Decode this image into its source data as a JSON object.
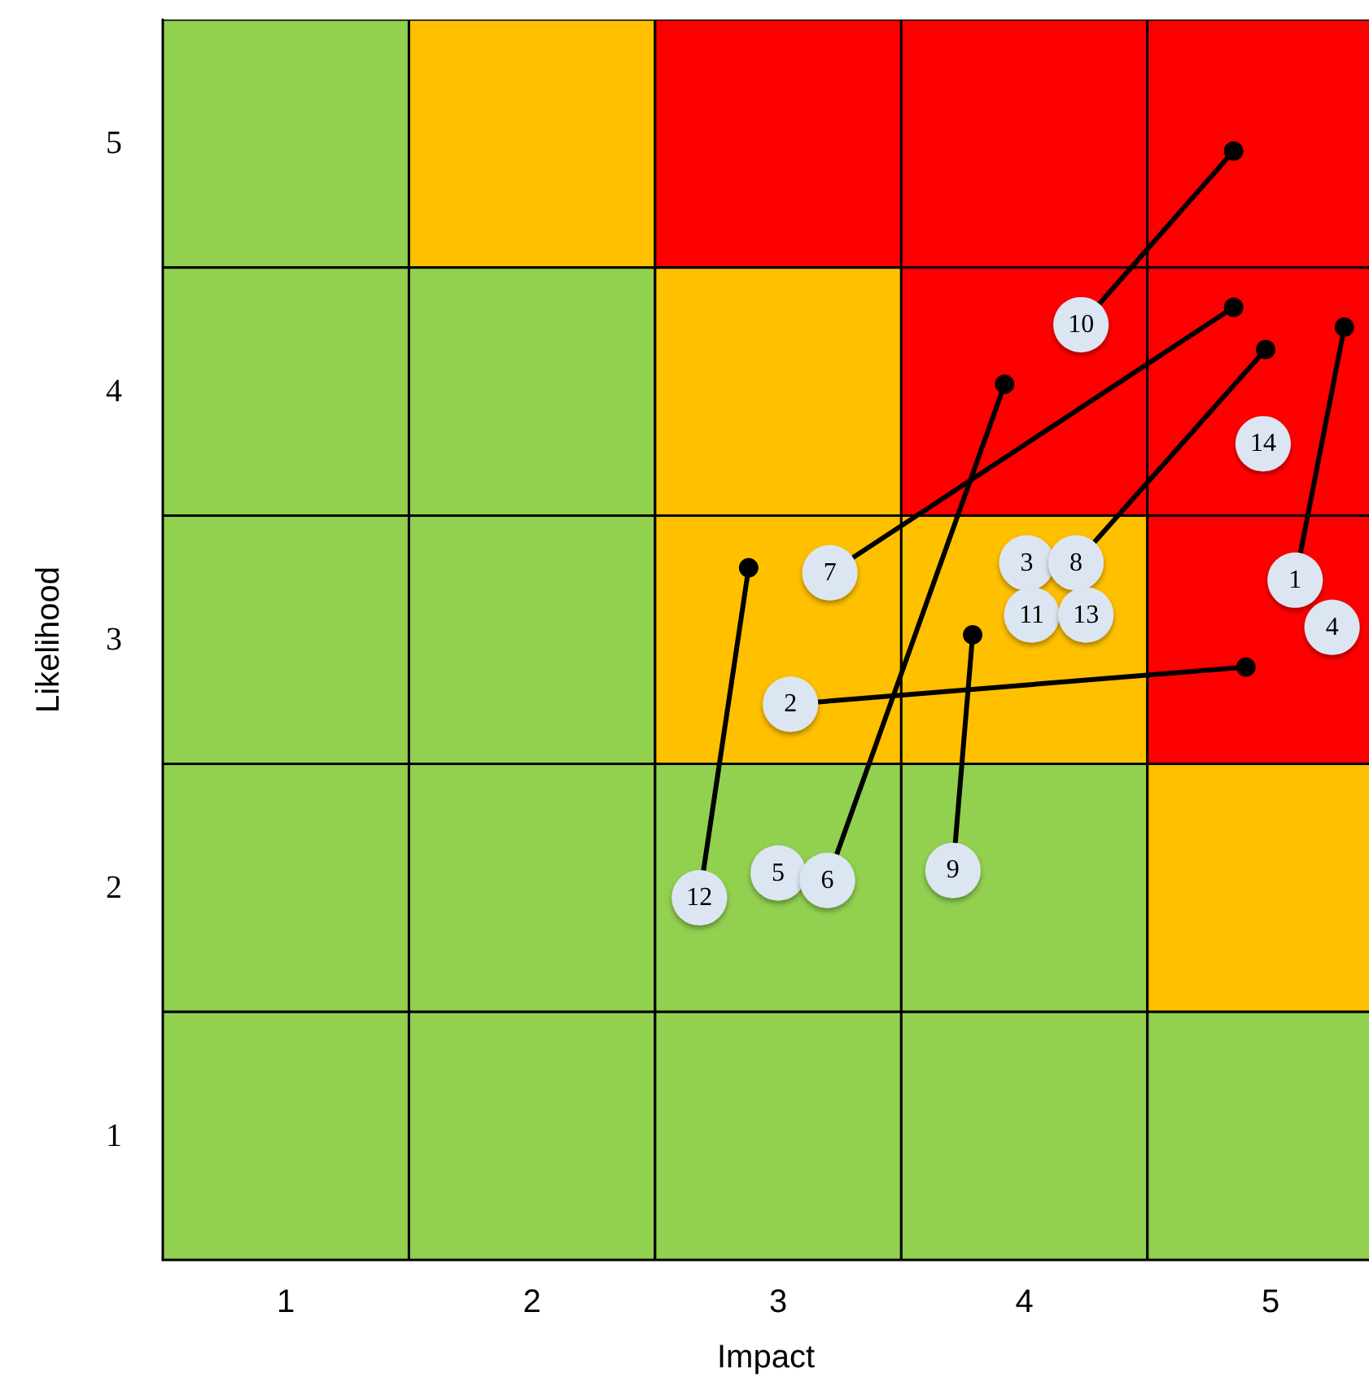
{
  "chart_data": {
    "type": "scatter",
    "xlabel": "Impact",
    "ylabel": "Likelihood",
    "xlim": [
      0.5,
      5.4
    ],
    "ylim": [
      0.5,
      5.5
    ],
    "xticks": [
      1,
      2,
      3,
      4,
      5
    ],
    "yticks": [
      1,
      2,
      3,
      4,
      5
    ],
    "series": [
      {
        "type": "bar",
        "x": [
          1,
          2,
          3,
          4,
          5
        ],
        "base": [
          4.5,
          4.5,
          4.5,
          4.5,
          4.5
        ],
        "values": [
          1,
          1,
          1,
          1,
          1
        ],
        "colors": [
          "#92d050",
          "#ffc000",
          "#ff0000",
          "#ff0000",
          "#ff0000"
        ]
      },
      {
        "type": "bar",
        "x": [
          1,
          2,
          3,
          4,
          5
        ],
        "base": [
          3.5,
          3.5,
          3.5,
          3.5,
          3.5
        ],
        "values": [
          1,
          1,
          1,
          1,
          1
        ],
        "colors": [
          "#92d050",
          "#92d050",
          "#ffc000",
          "#ff0000",
          "#ff0000"
        ]
      },
      {
        "type": "bar",
        "x": [
          1,
          2,
          3,
          4,
          5
        ],
        "base": [
          2.5,
          2.5,
          2.5,
          2.5,
          2.5
        ],
        "values": [
          1,
          1,
          1,
          1,
          1
        ],
        "colors": [
          "#92d050",
          "#92d050",
          "#ffc000",
          "#ffc000",
          "#ff0000"
        ]
      },
      {
        "type": "bar",
        "x": [
          1,
          2,
          3,
          4,
          5
        ],
        "base": [
          1.5,
          1.5,
          1.5,
          1.5,
          1.5
        ],
        "values": [
          1,
          1,
          1,
          1,
          1
        ],
        "colors": [
          "#92d050",
          "#92d050",
          "#92d050",
          "#92d050",
          "#ffc000"
        ]
      },
      {
        "type": "bar",
        "x": [
          1,
          2,
          3,
          4,
          5
        ],
        "base": [
          0.5,
          0.5,
          0.5,
          0.5,
          0.5
        ],
        "values": [
          1,
          1,
          1,
          1,
          1
        ],
        "colors": [
          "#92d050",
          "#92d050",
          "#92d050",
          "#92d050",
          "#92d050"
        ]
      },
      {
        "type": "line",
        "color": "#000000",
        "marker": "none",
        "x": [
          5.1,
          5.3
        ],
        "values": [
          3.24,
          4.26
        ]
      },
      {
        "type": "line",
        "color": "#000000",
        "marker": "none",
        "x": [
          3.05,
          4.9
        ],
        "values": [
          2.74,
          2.89
        ]
      },
      {
        "type": "line",
        "color": "#000000",
        "marker": "none",
        "x": [
          3.2,
          3.92
        ],
        "values": [
          2.03,
          4.03
        ]
      },
      {
        "type": "line",
        "color": "#000000",
        "marker": "none",
        "x": [
          3.21,
          4.85
        ],
        "values": [
          3.27,
          4.34
        ]
      },
      {
        "type": "line",
        "color": "#000000",
        "marker": "none",
        "x": [
          4.21,
          4.98
        ],
        "values": [
          3.31,
          4.17
        ]
      },
      {
        "type": "line",
        "color": "#000000",
        "marker": "none",
        "x": [
          3.71,
          3.79
        ],
        "values": [
          2.07,
          3.02
        ]
      },
      {
        "type": "line",
        "color": "#000000",
        "marker": "none",
        "x": [
          4.23,
          4.85
        ],
        "values": [
          4.27,
          4.97
        ]
      },
      {
        "type": "line",
        "color": "#000000",
        "marker": "none",
        "x": [
          2.68,
          2.88
        ],
        "values": [
          1.96,
          3.29
        ]
      },
      {
        "color": "#000000",
        "marker": "circle",
        "x": [
          5.3,
          4.9,
          3.92,
          4.85,
          4.98,
          3.79,
          4.85,
          2.88
        ],
        "values": [
          4.26,
          2.89,
          4.03,
          4.34,
          4.17,
          3.02,
          4.97,
          3.29
        ]
      },
      {
        "color": "#dce6f2",
        "marker": "circle",
        "x": [
          5.1,
          3.05,
          4.01,
          5.25,
          3.0,
          3.2,
          3.21,
          4.21,
          3.71,
          4.23,
          4.03,
          2.68,
          4.25,
          4.97
        ],
        "values": [
          3.24,
          2.74,
          3.31,
          3.05,
          2.06,
          2.03,
          3.27,
          3.31,
          2.07,
          4.27,
          3.1,
          1.96,
          3.1,
          3.79
        ]
      }
    ],
    "annotations": [
      {
        "text": "1",
        "x": 5.1,
        "y": 3.24
      },
      {
        "text": "2",
        "x": 3.05,
        "y": 2.74
      },
      {
        "text": "3",
        "x": 4.01,
        "y": 3.31
      },
      {
        "text": "4",
        "x": 5.25,
        "y": 3.05
      },
      {
        "text": "5",
        "x": 3.0,
        "y": 2.06
      },
      {
        "text": "6",
        "x": 3.2,
        "y": 2.03
      },
      {
        "text": "7",
        "x": 3.21,
        "y": 3.27
      },
      {
        "text": "8",
        "x": 4.21,
        "y": 3.31
      },
      {
        "text": "9",
        "x": 3.71,
        "y": 2.07
      },
      {
        "text": "10",
        "x": 4.23,
        "y": 4.27
      },
      {
        "text": "11",
        "x": 4.03,
        "y": 3.1
      },
      {
        "text": "12",
        "x": 2.68,
        "y": 1.96
      },
      {
        "text": "13",
        "x": 4.25,
        "y": 3.1
      },
      {
        "text": "14",
        "x": 4.97,
        "y": 3.79
      }
    ]
  }
}
